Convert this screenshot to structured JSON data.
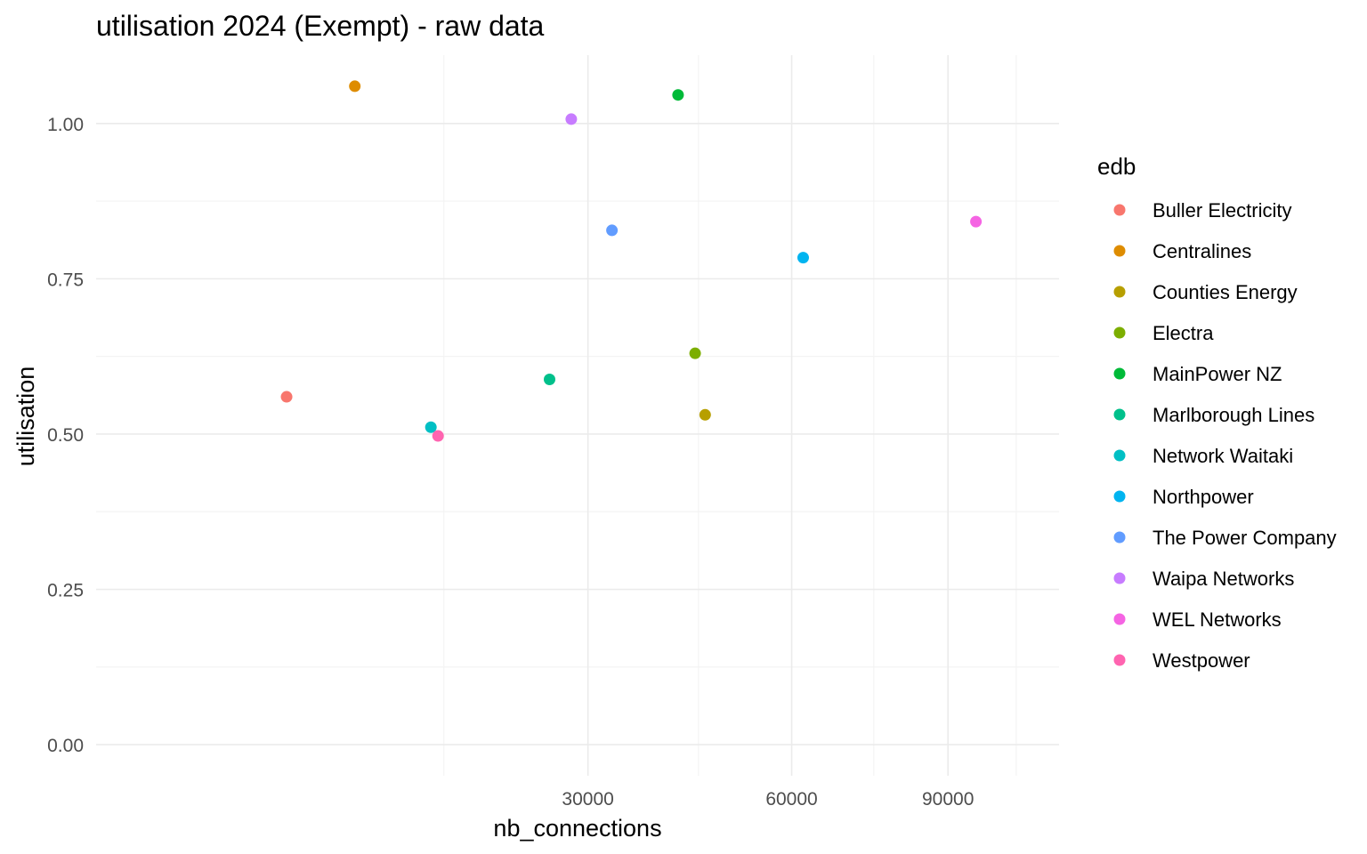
{
  "chart_data": {
    "type": "scatter",
    "title": "utilisation 2024 (Exempt) - raw data",
    "xlabel": "nb_connections",
    "ylabel": "utilisation",
    "x_scale": "sqrt",
    "xlim": [
      0,
      115000
    ],
    "ylim": [
      -0.05,
      1.11
    ],
    "x_ticks": [
      30000,
      60000,
      90000
    ],
    "x_tick_labels": [
      "30000",
      "60000",
      "90000"
    ],
    "y_ticks": [
      0,
      0.25,
      0.5,
      0.75,
      1
    ],
    "y_tick_labels": [
      "0.00",
      "0.25",
      "0.50",
      "0.75",
      "1.00"
    ],
    "grid": true,
    "legend": {
      "title": "edb",
      "placement": "right"
    },
    "series": [
      {
        "name": "Buller Electricity",
        "color": "#F8766D",
        "x": 4500,
        "y": 0.56
      },
      {
        "name": "Centralines",
        "color": "#DE8C00",
        "x": 8300,
        "y": 1.06
      },
      {
        "name": "Counties Energy",
        "color": "#B79F00",
        "x": 46000,
        "y": 0.531
      },
      {
        "name": "Electra",
        "color": "#7CAE00",
        "x": 44500,
        "y": 0.63
      },
      {
        "name": "MainPower NZ",
        "color": "#00BA38",
        "x": 42000,
        "y": 1.046
      },
      {
        "name": "Marlborough Lines",
        "color": "#00C08B",
        "x": 25500,
        "y": 0.588
      },
      {
        "name": "Network Waitaki",
        "color": "#00BFC4",
        "x": 13900,
        "y": 0.511
      },
      {
        "name": "Northpower",
        "color": "#00B4F0",
        "x": 62000,
        "y": 0.784
      },
      {
        "name": "The Power Company",
        "color": "#619CFF",
        "x": 33000,
        "y": 0.828
      },
      {
        "name": "Waipa Networks",
        "color": "#C77CFF",
        "x": 28000,
        "y": 1.007
      },
      {
        "name": "WEL Networks",
        "color": "#F564E3",
        "x": 96000,
        "y": 0.842
      },
      {
        "name": "Westpower",
        "color": "#FF64B0",
        "x": 14500,
        "y": 0.497
      }
    ]
  }
}
